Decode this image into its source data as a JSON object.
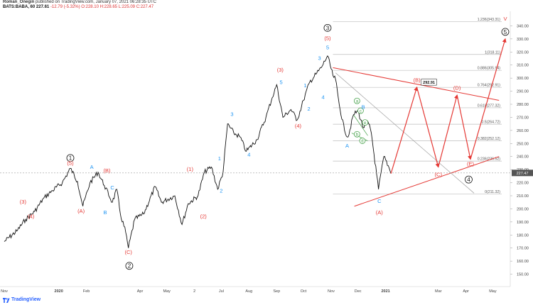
{
  "header": {
    "author": "Roman_Onegin",
    "published_text": "published on TradingView.com, January 07, 2021 06:28:35 UTC",
    "symbol": "BATS:BABA, 60",
    "last_price": "227.61",
    "change": "-12.79 (-5.32%)",
    "ohlc_text": "O:228.10 H:228.65 L:225.09 C:227.47"
  },
  "footer": {
    "brand": "TradingView",
    "logo_icon": "tradingview-logo-icon"
  },
  "colors": {
    "red": "#e53935",
    "blue": "#2196f3",
    "green": "#43a047",
    "black": "#111111",
    "fib": "#bdbdbd"
  },
  "chart_data": {
    "type": "line",
    "title": "",
    "xlabel": "",
    "ylabel": "",
    "symbol": "BATS:BABA",
    "interval": "60",
    "ylim": [
      140,
      350
    ],
    "y_ticks": [
      150,
      160,
      170,
      180,
      190,
      200,
      210,
      220,
      230,
      240,
      250,
      260,
      270,
      280,
      290,
      300,
      310,
      320,
      330,
      340
    ],
    "x_ticks": [
      "Nov",
      "2020",
      "Feb",
      "Mar",
      "Apr",
      "May",
      "Jun",
      "Jul",
      "Aug",
      "Sep",
      "Oct",
      "Nov",
      "Dec",
      "2021",
      "Mar",
      "Apr",
      "May"
    ],
    "x_tick_labels_printed": [
      "Nov",
      "2020",
      "Feb",
      "Apr",
      "May",
      "2",
      "Jul",
      "Aug",
      "Sep",
      "Oct",
      "Nov",
      "Dec",
      "2021",
      "Mar",
      "Apr",
      "May"
    ],
    "current_price": 227.47,
    "price_path": [
      [
        "2019-11-01",
        175
      ],
      [
        "2019-11-15",
        183
      ],
      [
        "2019-11-25",
        192
      ],
      [
        "2019-12-05",
        198
      ],
      [
        "2019-12-15",
        208
      ],
      [
        "2019-12-25",
        214
      ],
      [
        "2020-01-05",
        220
      ],
      [
        "2020-01-14",
        231
      ],
      [
        "2020-01-22",
        221
      ],
      [
        "2020-01-28",
        202
      ],
      [
        "2020-02-05",
        220
      ],
      [
        "2020-02-14",
        228
      ],
      [
        "2020-02-21",
        218
      ],
      [
        "2020-03-01",
        205
      ],
      [
        "2020-03-06",
        215
      ],
      [
        "2020-03-10",
        196
      ],
      [
        "2020-03-16",
        182
      ],
      [
        "2020-03-19",
        170
      ],
      [
        "2020-03-26",
        192
      ],
      [
        "2020-04-05",
        196
      ],
      [
        "2020-04-18",
        217
      ],
      [
        "2020-04-25",
        205
      ],
      [
        "2020-05-10",
        210
      ],
      [
        "2020-05-18",
        188
      ],
      [
        "2020-05-25",
        204
      ],
      [
        "2020-06-05",
        210
      ],
      [
        "2020-06-12",
        228
      ],
      [
        "2020-06-20",
        232
      ],
      [
        "2020-06-27",
        215
      ],
      [
        "2020-07-03",
        228
      ],
      [
        "2020-07-08",
        265
      ],
      [
        "2020-07-15",
        258
      ],
      [
        "2020-07-22",
        255
      ],
      [
        "2020-07-29",
        244
      ],
      [
        "2020-08-10",
        253
      ],
      [
        "2020-08-20",
        270
      ],
      [
        "2020-08-27",
        285
      ],
      [
        "2020-09-01",
        295
      ],
      [
        "2020-09-08",
        270
      ],
      [
        "2020-09-17",
        276
      ],
      [
        "2020-09-24",
        268
      ],
      [
        "2020-10-01",
        283
      ],
      [
        "2020-10-08",
        297
      ],
      [
        "2020-10-15",
        303
      ],
      [
        "2020-10-21",
        308
      ],
      [
        "2020-10-28",
        317
      ],
      [
        "2020-11-03",
        302
      ],
      [
        "2020-11-06",
        299
      ],
      [
        "2020-11-10",
        280
      ],
      [
        "2020-11-16",
        260
      ],
      [
        "2020-11-20",
        255
      ],
      [
        "2020-11-26",
        272
      ],
      [
        "2020-12-01",
        275
      ],
      [
        "2020-12-07",
        262
      ],
      [
        "2020-12-12",
        267
      ],
      [
        "2020-12-16",
        258
      ],
      [
        "2020-12-24",
        215
      ],
      [
        "2020-12-30",
        240
      ],
      [
        "2021-01-04",
        233
      ],
      [
        "2021-01-07",
        227
      ]
    ],
    "projection": [
      [
        "2021-01-07",
        227
      ],
      [
        "2021-02-05",
        293
      ],
      [
        "2021-03-01",
        232
      ],
      [
        "2021-03-22",
        287
      ],
      [
        "2021-04-06",
        238
      ],
      [
        "2021-05-15",
        330
      ]
    ],
    "fib_levels": [
      {
        "ratio": "0",
        "price": 211.32,
        "label": "0(211.32)"
      },
      {
        "ratio": "0.236",
        "price": 236.52,
        "label": "0.236(236.52)"
      },
      {
        "ratio": "0.382",
        "price": 252.12,
        "label": "0.382(252.12)"
      },
      {
        "ratio": "0.5",
        "price": 264.72,
        "label": "0.5(264.72)"
      },
      {
        "ratio": "0.618",
        "price": 277.32,
        "label": "0.618(277.32)"
      },
      {
        "ratio": "0.764",
        "price": 292.91,
        "label": "0.764(292.91)"
      },
      {
        "ratio": "0.886",
        "price": 305.94,
        "label": "0.886(305.94)"
      },
      {
        "ratio": "1",
        "price": 318.11,
        "label": "1(318.11)"
      },
      {
        "ratio": "1.236",
        "price": 343.31,
        "label": "1.236(343.31)"
      }
    ],
    "callout": {
      "text": "292.91",
      "date": "2021-02-05",
      "price": 292.91
    },
    "wave_labels": [
      {
        "text": "1",
        "date": "2020-01-14",
        "price": 237.5,
        "color": "black",
        "circle": true
      },
      {
        "text": "(5)",
        "date": "2020-01-14",
        "price": 233.5,
        "color": "red"
      },
      {
        "text": "(3)",
        "date": "2019-11-22",
        "price": 204,
        "color": "red"
      },
      {
        "text": "(4)",
        "date": "2019-12-01",
        "price": 193,
        "color": "red"
      },
      {
        "text": "A",
        "date": "2020-02-07",
        "price": 230.5,
        "color": "blue"
      },
      {
        "text": "(A)",
        "date": "2020-01-26",
        "price": 197,
        "color": "red"
      },
      {
        "text": "(B)",
        "date": "2020-02-24",
        "price": 228,
        "color": "red"
      },
      {
        "text": "B",
        "date": "2020-02-22",
        "price": 196,
        "color": "blue"
      },
      {
        "text": "C",
        "date": "2020-03-01",
        "price": 215,
        "color": "blue"
      },
      {
        "text": "(C)",
        "date": "2020-03-19",
        "price": 165.5,
        "color": "red"
      },
      {
        "text": "2",
        "date": "2020-03-20",
        "price": 155,
        "color": "black",
        "circle": true
      },
      {
        "text": "(1)",
        "date": "2020-05-27",
        "price": 229,
        "color": "red"
      },
      {
        "text": "(2)",
        "date": "2020-06-11",
        "price": 193,
        "color": "red"
      },
      {
        "text": "1",
        "date": "2020-06-29",
        "price": 237,
        "color": "blue"
      },
      {
        "text": "2",
        "date": "2020-07-01",
        "price": 212.5,
        "color": "blue"
      },
      {
        "text": "3",
        "date": "2020-07-13",
        "price": 271,
        "color": "blue"
      },
      {
        "text": "4",
        "date": "2020-08-01",
        "price": 240,
        "color": "blue"
      },
      {
        "text": "(3)",
        "date": "2020-09-05",
        "price": 305,
        "color": "red"
      },
      {
        "text": "5",
        "date": "2020-09-06",
        "price": 295.5,
        "color": "blue"
      },
      {
        "text": "(4)",
        "date": "2020-09-25",
        "price": 262,
        "color": "red"
      },
      {
        "text": "1",
        "date": "2020-10-03",
        "price": 293,
        "color": "blue"
      },
      {
        "text": "2",
        "date": "2020-10-07",
        "price": 275,
        "color": "blue"
      },
      {
        "text": "3",
        "date": "2020-10-19",
        "price": 314,
        "color": "blue"
      },
      {
        "text": "4",
        "date": "2020-10-23",
        "price": 284,
        "color": "blue"
      },
      {
        "text": "3",
        "date": "2020-10-28",
        "price": 337,
        "color": "black",
        "circle": true
      },
      {
        "text": "(5)",
        "date": "2020-10-28",
        "price": 329,
        "color": "red"
      },
      {
        "text": "5",
        "date": "2020-10-28",
        "price": 322,
        "color": "blue"
      },
      {
        "text": "A",
        "date": "2020-11-19",
        "price": 247,
        "color": "blue"
      },
      {
        "text": "a",
        "date": "2020-11-30",
        "price": 281.5,
        "color": "green",
        "circle": true
      },
      {
        "text": "c",
        "date": "2020-12-04",
        "price": 274,
        "color": "green",
        "circle": true
      },
      {
        "text": "B",
        "date": "2020-12-07",
        "price": 276.5,
        "color": "blue"
      },
      {
        "text": "b",
        "date": "2020-11-30",
        "price": 256,
        "color": "green",
        "circle": true
      },
      {
        "text": "e",
        "date": "2020-12-09",
        "price": 265,
        "color": "green",
        "circle": true
      },
      {
        "text": "d",
        "date": "2020-12-06",
        "price": 251,
        "color": "green",
        "circle": true
      },
      {
        "text": "C",
        "date": "2020-12-25",
        "price": 204.5,
        "color": "blue"
      },
      {
        "text": "(A)",
        "date": "2020-12-25",
        "price": 196,
        "color": "red"
      },
      {
        "text": "(B)",
        "date": "2021-02-05",
        "price": 297,
        "color": "red"
      },
      {
        "text": "(D)",
        "date": "2021-03-22",
        "price": 291,
        "color": "red"
      },
      {
        "text": "(C)",
        "date": "2021-03-01",
        "price": 225,
        "color": "red"
      },
      {
        "text": "(E)",
        "date": "2021-04-06",
        "price": 233,
        "color": "red"
      },
      {
        "text": "4",
        "date": "2021-04-04",
        "price": 221,
        "color": "black",
        "circle": true
      },
      {
        "text": "5",
        "date": "2021-05-15",
        "price": 334,
        "color": "black",
        "circle": true
      },
      {
        "text": "V",
        "date": "2021-05-15",
        "price": 344,
        "color": "red"
      }
    ],
    "trend_lines": [
      {
        "color": "red",
        "from": [
          "2020-11-03",
          308
        ],
        "to": [
          "2021-05-08",
          283
        ]
      },
      {
        "color": "red",
        "from": [
          "2020-11-27",
          202
        ],
        "to": [
          "2021-05-08",
          240
        ]
      },
      {
        "color": "grey",
        "from": [
          "2020-11-06",
          304
        ],
        "to": [
          "2021-04-10",
          212
        ]
      },
      {
        "color": "green",
        "from": [
          "2020-11-26",
          272
        ],
        "to": [
          "2020-12-12",
          256
        ]
      },
      {
        "color": "green",
        "from": [
          "2020-11-24",
          258
        ],
        "to": [
          "2020-12-12",
          252
        ]
      }
    ]
  }
}
